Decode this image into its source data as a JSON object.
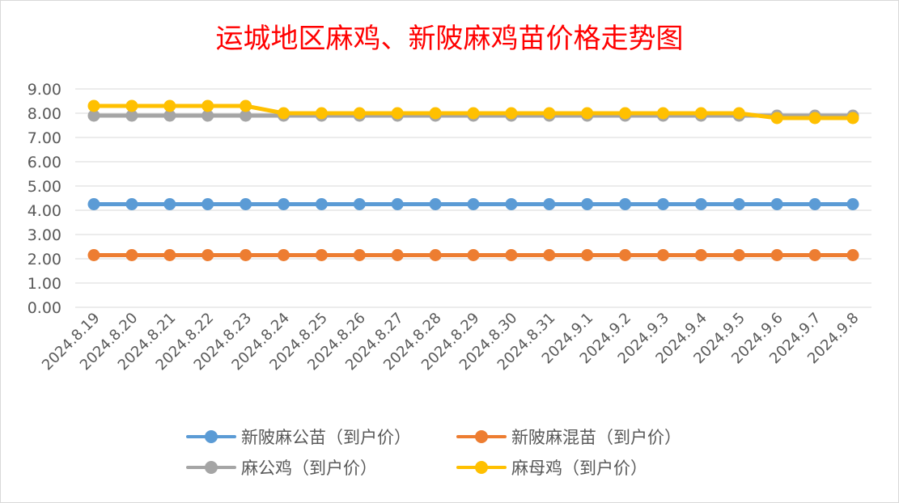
{
  "chart_data": {
    "type": "line",
    "title": "运城地区麻鸡、新陂麻鸡苗价格走势图",
    "xlabel": "",
    "ylabel": "",
    "ylim": [
      0,
      9
    ],
    "yticks": [
      "0.00",
      "1.00",
      "2.00",
      "3.00",
      "4.00",
      "5.00",
      "6.00",
      "7.00",
      "8.00",
      "9.00"
    ],
    "grid": true,
    "legend_position": "bottom",
    "categories": [
      "2024.8.19",
      "2024.8.20",
      "2024.8.21",
      "2024.8.22",
      "2024.8.23",
      "2024.8.24",
      "2024.8.25",
      "2024.8.26",
      "2024.8.27",
      "2024.8.28",
      "2024.8.29",
      "2024.8.30",
      "2024.8.31",
      "2024.9.1",
      "2024.9.2",
      "2024.9.3",
      "2024.9.4",
      "2024.9.5",
      "2024.9.6",
      "2024.9.7",
      "2024.9.8"
    ],
    "series": [
      {
        "name": "新陂麻公苗（到户价）",
        "color": "#5b9bd5",
        "values": [
          4.25,
          4.25,
          4.25,
          4.25,
          4.25,
          4.25,
          4.25,
          4.25,
          4.25,
          4.25,
          4.25,
          4.25,
          4.25,
          4.25,
          4.25,
          4.25,
          4.25,
          4.25,
          4.25,
          4.25,
          4.25
        ]
      },
      {
        "name": "新陂麻混苗（到户价）",
        "color": "#ed7d31",
        "values": [
          2.15,
          2.15,
          2.15,
          2.15,
          2.15,
          2.15,
          2.15,
          2.15,
          2.15,
          2.15,
          2.15,
          2.15,
          2.15,
          2.15,
          2.15,
          2.15,
          2.15,
          2.15,
          2.15,
          2.15,
          2.15
        ]
      },
      {
        "name": "麻公鸡（到户价）",
        "color": "#a5a5a5",
        "values": [
          7.9,
          7.9,
          7.9,
          7.9,
          7.9,
          7.9,
          7.9,
          7.9,
          7.9,
          7.9,
          7.9,
          7.9,
          7.9,
          7.9,
          7.9,
          7.9,
          7.9,
          7.9,
          7.9,
          7.9,
          7.9
        ]
      },
      {
        "name": "麻母鸡（到户价）",
        "color": "#ffc000",
        "values": [
          8.3,
          8.3,
          8.3,
          8.3,
          8.3,
          8.0,
          8.0,
          8.0,
          8.0,
          8.0,
          8.0,
          8.0,
          8.0,
          8.0,
          8.0,
          8.0,
          8.0,
          8.0,
          7.8,
          7.8,
          7.8
        ]
      }
    ]
  }
}
